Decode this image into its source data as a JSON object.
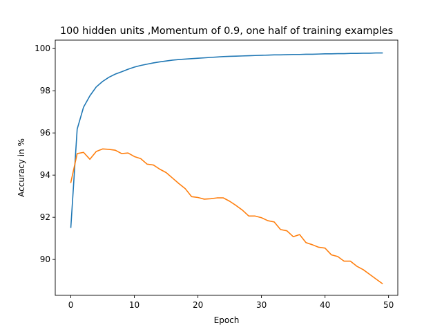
{
  "chart_data": {
    "type": "line",
    "title": "100 hidden units ,Momentum of 0.9, one half of training examples",
    "xlabel": "Epoch",
    "ylabel": "Accuracy in %",
    "xlim": [
      -2.45,
      51.45
    ],
    "ylim": [
      88.3,
      100.4
    ],
    "xticks": [
      0,
      10,
      20,
      30,
      40,
      50
    ],
    "yticks": [
      90,
      92,
      94,
      96,
      98,
      100
    ],
    "grid": false,
    "legend": "none",
    "x": [
      0,
      1,
      2,
      3,
      4,
      5,
      6,
      7,
      8,
      9,
      10,
      11,
      12,
      13,
      14,
      15,
      16,
      17,
      18,
      19,
      20,
      21,
      22,
      23,
      24,
      25,
      26,
      27,
      28,
      29,
      30,
      31,
      32,
      33,
      34,
      35,
      36,
      37,
      38,
      39,
      40,
      41,
      42,
      43,
      44,
      45,
      46,
      47,
      48,
      49
    ],
    "series": [
      {
        "color": "#1f77b4",
        "values": [
          91.52,
          96.18,
          97.22,
          97.76,
          98.18,
          98.44,
          98.64,
          98.79,
          98.9,
          99.02,
          99.12,
          99.2,
          99.26,
          99.32,
          99.37,
          99.41,
          99.45,
          99.48,
          99.5,
          99.52,
          99.54,
          99.56,
          99.58,
          99.6,
          99.62,
          99.63,
          99.64,
          99.65,
          99.66,
          99.67,
          99.68,
          99.69,
          99.7,
          99.7,
          99.71,
          99.72,
          99.72,
          99.73,
          99.73,
          99.74,
          99.75,
          99.75,
          99.76,
          99.76,
          99.77,
          99.77,
          99.78,
          99.78,
          99.79,
          99.79
        ]
      },
      {
        "color": "#ff7f0e",
        "values": [
          93.65,
          95.02,
          95.08,
          94.75,
          95.12,
          95.24,
          95.22,
          95.18,
          95.02,
          95.05,
          94.88,
          94.78,
          94.52,
          94.48,
          94.28,
          94.12,
          93.86,
          93.6,
          93.36,
          92.98,
          92.94,
          92.86,
          92.88,
          92.92,
          92.92,
          92.76,
          92.56,
          92.34,
          92.06,
          92.06,
          91.98,
          91.84,
          91.78,
          91.42,
          91.36,
          91.08,
          91.18,
          90.8,
          90.7,
          90.58,
          90.54,
          90.22,
          90.14,
          89.92,
          89.92,
          89.68,
          89.52,
          89.3,
          89.08,
          88.86
        ]
      }
    ]
  }
}
